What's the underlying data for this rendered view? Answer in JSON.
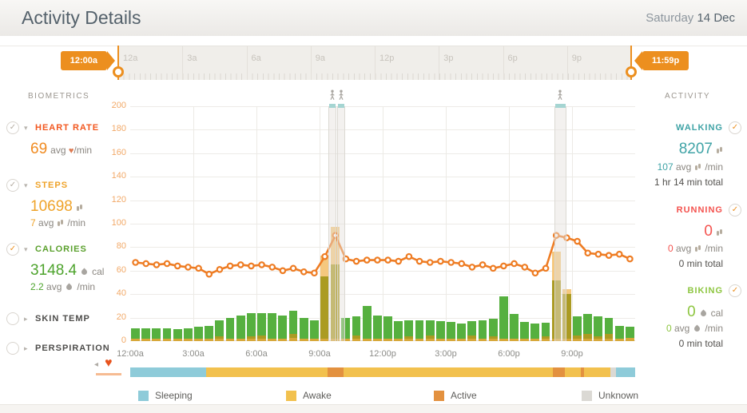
{
  "header": {
    "title": "Activity Details",
    "date_day": "Saturday",
    "date_rest": "14 Dec"
  },
  "timeline": {
    "start_label": "12:00a",
    "end_label": "11:59p",
    "ticks": [
      "12a",
      "3a",
      "6a",
      "9a",
      "12p",
      "3p",
      "6p",
      "9p"
    ]
  },
  "biometrics": {
    "title": "BIOMETRICS",
    "heart": {
      "label": "HEART RATE",
      "value": "69",
      "avg_label": "avg",
      "per": "/min"
    },
    "steps": {
      "label": "STEPS",
      "value": "10698",
      "avg_value": "7",
      "avg_label": "avg",
      "per": "/min"
    },
    "calories": {
      "label": "CALORIES",
      "value": "3148.4",
      "unit": "cal",
      "avg_value": "2.2",
      "avg_label": "avg",
      "per": "/min"
    },
    "skin_temp": {
      "label": "SKIN TEMP"
    },
    "perspiration": {
      "label": "PERSPIRATION"
    }
  },
  "activity": {
    "title": "ACTIVITY",
    "walking": {
      "label": "WALKING",
      "value": "8207",
      "avg_value": "107",
      "avg_label": "avg",
      "per": "/min",
      "total": "1 hr 14 min total"
    },
    "running": {
      "label": "RUNNING",
      "value": "0",
      "avg_value": "0",
      "avg_label": "avg",
      "per": "/min",
      "total": "0 min total"
    },
    "biking": {
      "label": "BIKING",
      "value": "0",
      "unit": "cal",
      "avg_value": "0",
      "avg_label": "avg",
      "per": "/min",
      "total": "0 min total"
    }
  },
  "chart_data": {
    "type": "composite",
    "subtype": "stacked-bars + heart-rate line + activity strip",
    "x_hours": 24,
    "x_labels": [
      "12:00a",
      "3:00a",
      "6:00a",
      "9:00a",
      "12:00p",
      "3:00p",
      "6:00p",
      "9:00p"
    ],
    "ylim": [
      0,
      200
    ],
    "yticks": [
      0,
      20,
      40,
      60,
      80,
      100,
      120,
      140,
      160,
      180,
      200
    ],
    "bar_colors": {
      "b": "#d7a83a",
      "o": "#ab9b22",
      "g": "#56b03f",
      "a": "#f5c87e"
    },
    "bars_interval_min": 30,
    "bars": [
      [
        [
          "b",
          2
        ],
        [
          "g",
          9
        ]
      ],
      [
        [
          "b",
          2
        ],
        [
          "g",
          9
        ]
      ],
      [
        [
          "b",
          2
        ],
        [
          "g",
          9
        ]
      ],
      [
        [
          "b",
          2
        ],
        [
          "g",
          9
        ]
      ],
      [
        [
          "b",
          2
        ],
        [
          "g",
          8
        ]
      ],
      [
        [
          "b",
          2
        ],
        [
          "g",
          9
        ]
      ],
      [
        [
          "b",
          2
        ],
        [
          "g",
          10
        ]
      ],
      [
        [
          "b",
          2
        ],
        [
          "g",
          11
        ]
      ],
      [
        [
          "b",
          2
        ],
        [
          "o",
          2
        ],
        [
          "g",
          14
        ]
      ],
      [
        [
          "b",
          2
        ],
        [
          "g",
          18
        ]
      ],
      [
        [
          "b",
          2
        ],
        [
          "g",
          20
        ]
      ],
      [
        [
          "b",
          2
        ],
        [
          "o",
          2
        ],
        [
          "g",
          20
        ]
      ],
      [
        [
          "b",
          2
        ],
        [
          "o",
          3
        ],
        [
          "g",
          19
        ]
      ],
      [
        [
          "b",
          2
        ],
        [
          "g",
          22
        ]
      ],
      [
        [
          "b",
          2
        ],
        [
          "g",
          20
        ]
      ],
      [
        [
          "b",
          3
        ],
        [
          "o",
          3
        ],
        [
          "g",
          20
        ]
      ],
      [
        [
          "b",
          2
        ],
        [
          "g",
          18
        ]
      ],
      [
        [
          "b",
          2
        ],
        [
          "g",
          16
        ]
      ],
      [
        [
          "b",
          2
        ],
        [
          "o",
          53
        ],
        [
          "a",
          18
        ]
      ],
      [
        [
          "b",
          2
        ],
        [
          "o",
          63
        ],
        [
          "a",
          32
        ]
      ],
      [
        [
          "b",
          2
        ],
        [
          "g",
          18
        ]
      ],
      [
        [
          "b",
          2
        ],
        [
          "o",
          3
        ],
        [
          "g",
          16
        ]
      ],
      [
        [
          "b",
          2
        ],
        [
          "g",
          28
        ]
      ],
      [
        [
          "b",
          2
        ],
        [
          "g",
          20
        ]
      ],
      [
        [
          "b",
          2
        ],
        [
          "g",
          19
        ]
      ],
      [
        [
          "b",
          2
        ],
        [
          "g",
          15
        ]
      ],
      [
        [
          "b",
          2
        ],
        [
          "o",
          2
        ],
        [
          "g",
          14
        ]
      ],
      [
        [
          "b",
          2
        ],
        [
          "g",
          16
        ]
      ],
      [
        [
          "b",
          2
        ],
        [
          "o",
          3
        ],
        [
          "g",
          13
        ]
      ],
      [
        [
          "b",
          2
        ],
        [
          "g",
          15
        ]
      ],
      [
        [
          "b",
          2
        ],
        [
          "g",
          14
        ]
      ],
      [
        [
          "b",
          2
        ],
        [
          "g",
          13
        ]
      ],
      [
        [
          "b",
          2
        ],
        [
          "o",
          3
        ],
        [
          "g",
          12
        ]
      ],
      [
        [
          "b",
          2
        ],
        [
          "g",
          16
        ]
      ],
      [
        [
          "b",
          2
        ],
        [
          "o",
          2
        ],
        [
          "g",
          15
        ]
      ],
      [
        [
          "b",
          2
        ],
        [
          "g",
          36
        ]
      ],
      [
        [
          "b",
          2
        ],
        [
          "g",
          21
        ]
      ],
      [
        [
          "b",
          2
        ],
        [
          "g",
          14
        ]
      ],
      [
        [
          "b",
          2
        ],
        [
          "g",
          13
        ]
      ],
      [
        [
          "b",
          2
        ],
        [
          "o",
          2
        ],
        [
          "g",
          12
        ]
      ],
      [
        [
          "b",
          2
        ],
        [
          "o",
          50
        ],
        [
          "a",
          24
        ]
      ],
      [
        [
          "b",
          2
        ],
        [
          "o",
          38
        ],
        [
          "a",
          4
        ]
      ],
      [
        [
          "b",
          2
        ],
        [
          "o",
          3
        ],
        [
          "g",
          16
        ]
      ],
      [
        [
          "b",
          2
        ],
        [
          "o",
          4
        ],
        [
          "g",
          17
        ]
      ],
      [
        [
          "b",
          2
        ],
        [
          "o",
          2
        ],
        [
          "g",
          17
        ]
      ],
      [
        [
          "b",
          2
        ],
        [
          "o",
          4
        ],
        [
          "g",
          14
        ]
      ],
      [
        [
          "b",
          2
        ],
        [
          "g",
          11
        ]
      ],
      [
        [
          "b",
          3
        ],
        [
          "g",
          9
        ]
      ]
    ],
    "line": {
      "name": "heart-rate",
      "color": "#ee7c23",
      "values": [
        67,
        66,
        65,
        66,
        64,
        63,
        62,
        57,
        61,
        64,
        65,
        64,
        65,
        63,
        60,
        62,
        59,
        58,
        72,
        90,
        70,
        68,
        69,
        69,
        69,
        68,
        72,
        68,
        67,
        68,
        67,
        66,
        63,
        65,
        62,
        64,
        66,
        63,
        58,
        62,
        90,
        88,
        85,
        75,
        74,
        73,
        74,
        70
      ]
    },
    "highlights": [
      {
        "start_h": 9.42,
        "end_h": 9.8
      },
      {
        "start_h": 9.84,
        "end_h": 10.2
      },
      {
        "start_h": 20.15,
        "end_h": 20.72
      }
    ],
    "state_colors": {
      "sleeping": "#8ecbd9",
      "awake": "#f2c14e",
      "active": "#e3913f",
      "unknown": "#dbd9d4"
    },
    "strip": [
      [
        "sleeping",
        0,
        3.6
      ],
      [
        "awake",
        3.6,
        9.38
      ],
      [
        "active",
        9.38,
        10.13
      ],
      [
        "awake",
        10.13,
        20.08
      ],
      [
        "active",
        20.08,
        20.67
      ],
      [
        "awake",
        20.67,
        21.42
      ],
      [
        "active",
        21.42,
        21.58
      ],
      [
        "awake",
        21.58,
        22.83
      ],
      [
        "unknown",
        22.83,
        23.08
      ],
      [
        "sleeping",
        23.08,
        24
      ]
    ],
    "legend": [
      {
        "label": "Sleeping",
        "key": "sleeping"
      },
      {
        "label": "Awake",
        "key": "awake"
      },
      {
        "label": "Active",
        "key": "active"
      },
      {
        "label": "Unknown",
        "key": "unknown"
      }
    ]
  }
}
